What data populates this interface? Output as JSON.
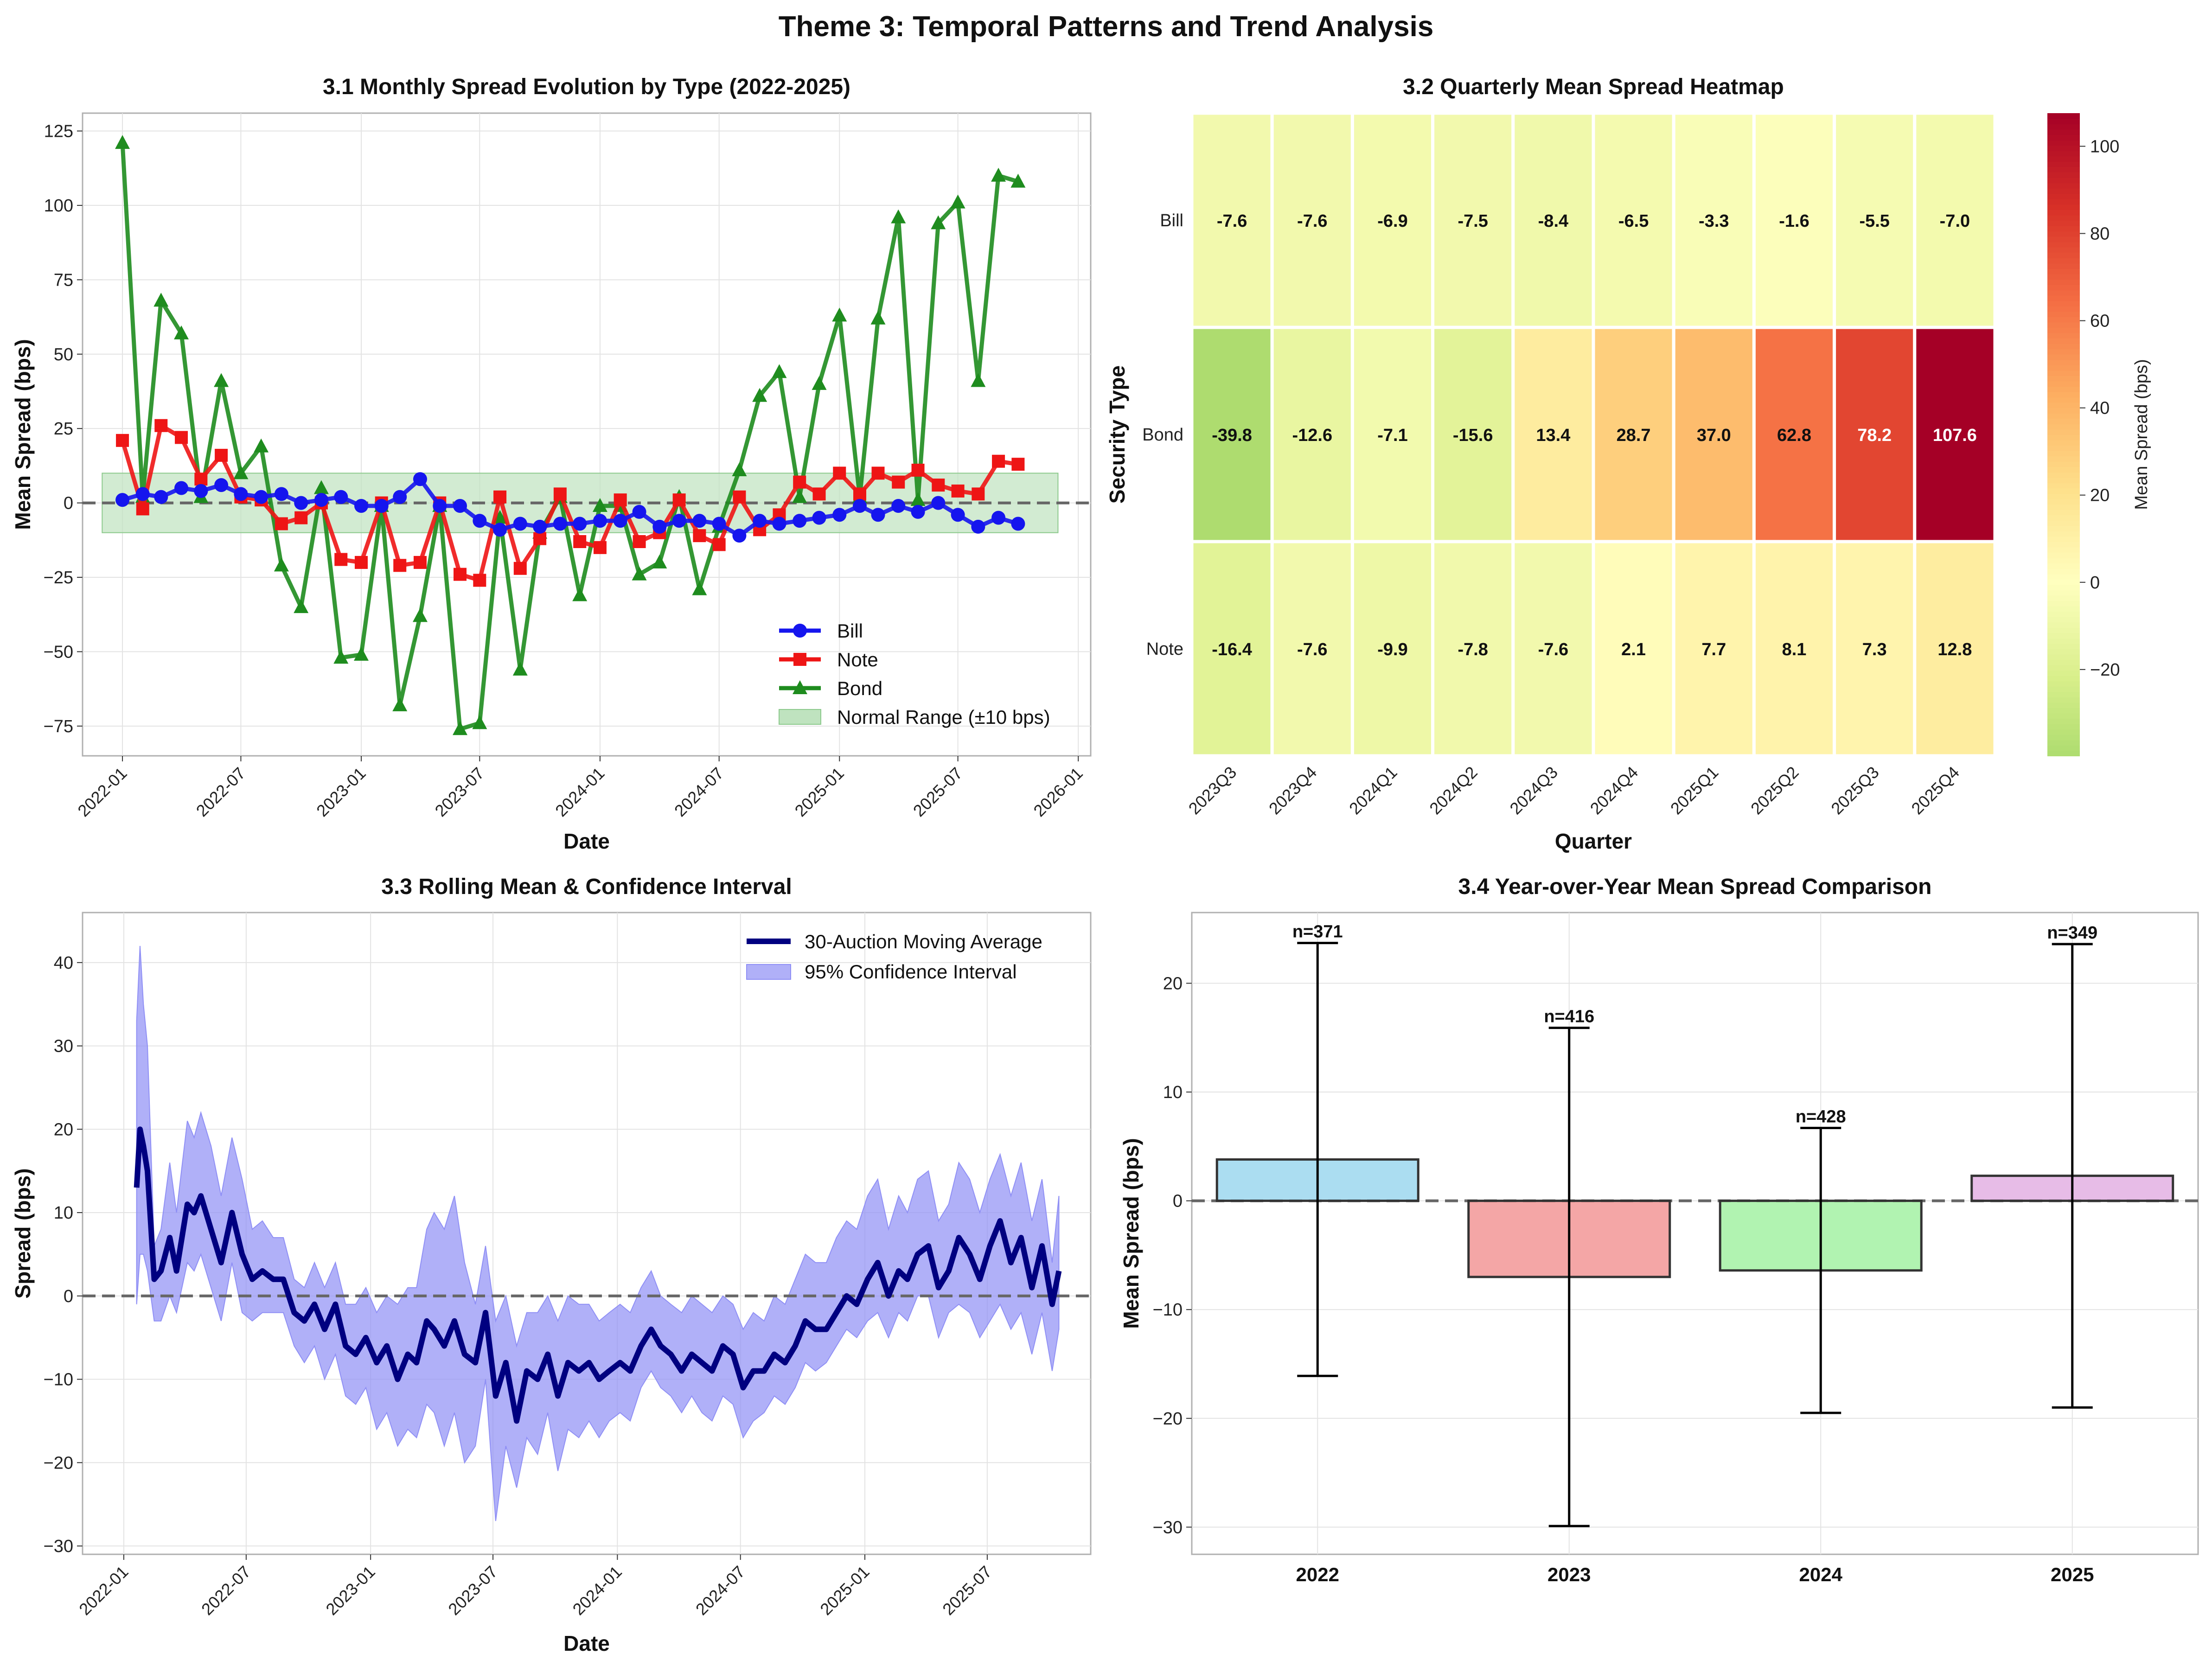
{
  "figure": {
    "title": "Theme 3: Temporal Patterns and Trend Analysis"
  },
  "colors": {
    "bill": "#1515ee",
    "note": "#ee1515",
    "bond": "#1e8c1e",
    "ma": "#000080",
    "ci": "#8f8ff5",
    "normal_range": "#bfe3bf",
    "grid": "#e3e3e3",
    "bars": [
      "#87ceeb",
      "#f08080",
      "#90ee90",
      "#dda0dd"
    ]
  },
  "chart_data": [
    {
      "id": "monthly",
      "type": "line",
      "title": "3.1 Monthly Spread Evolution by Type (2022-2025)",
      "xlabel": "Date",
      "ylabel": "Mean Spread (bps)",
      "xlim": [
        "2021-11-01",
        "2026-01-20"
      ],
      "ylim": [
        -85,
        131
      ],
      "yticks": [
        -75,
        -50,
        -25,
        0,
        25,
        50,
        75,
        100,
        125
      ],
      "xticks": [
        "2022-01",
        "2022-07",
        "2023-01",
        "2023-07",
        "2024-01",
        "2024-07",
        "2025-01",
        "2025-07",
        "2026-01"
      ],
      "grid": true,
      "legend_position": "lower-right",
      "normal_range": {
        "label": "Normal Range (±10 bps)",
        "x": [
          "2021-12-01",
          "2025-12-01"
        ],
        "y": [
          -10,
          10
        ]
      },
      "zero_line": 0,
      "dates": [
        "2022-01",
        "2022-02",
        "2022-03",
        "2022-04",
        "2022-05",
        "2022-06",
        "2022-07",
        "2022-08",
        "2022-09",
        "2022-10",
        "2022-11",
        "2022-12",
        "2023-01",
        "2023-02",
        "2023-03",
        "2023-04",
        "2023-05",
        "2023-06",
        "2023-07",
        "2023-08",
        "2023-09",
        "2023-10",
        "2023-11",
        "2023-12",
        "2024-01",
        "2024-02",
        "2024-03",
        "2024-04",
        "2024-05",
        "2024-06",
        "2024-07",
        "2024-08",
        "2024-09",
        "2024-10",
        "2024-11",
        "2024-12",
        "2025-01",
        "2025-02",
        "2025-03",
        "2025-04",
        "2025-05",
        "2025-06",
        "2025-07",
        "2025-08",
        "2025-09",
        "2025-10",
        "2025-11"
      ],
      "series": [
        {
          "name": "Bill",
          "marker": "circle",
          "values": [
            1,
            3,
            2,
            5,
            4,
            6,
            3,
            2,
            3,
            0,
            1,
            2,
            -1,
            -1,
            2,
            8,
            -1,
            -1,
            -6,
            -9,
            -7,
            -8,
            -7,
            -7,
            -6,
            -6,
            -3,
            -8,
            -6,
            -6,
            -7,
            -11,
            -6,
            -7,
            -6,
            -5,
            -4,
            -1,
            -4,
            -1,
            -3,
            0,
            -4,
            -8,
            -5,
            -7,
            null
          ]
        },
        {
          "name": "Note",
          "marker": "square",
          "values": [
            21,
            -2,
            26,
            22,
            8,
            16,
            2,
            1,
            -7,
            -5,
            0,
            -19,
            -20,
            0,
            -21,
            -20,
            0,
            -24,
            -26,
            2,
            -22,
            -12,
            3,
            -13,
            -15,
            1,
            -13,
            -10,
            1,
            -11,
            -14,
            2,
            -9,
            -4,
            7,
            3,
            10,
            3,
            10,
            7,
            11,
            6,
            4,
            3,
            14,
            13,
            null
          ]
        },
        {
          "name": "Bond",
          "marker": "triangle",
          "values": [
            121,
            2,
            68,
            57,
            2,
            41,
            10,
            19,
            -21,
            -35,
            5,
            -52,
            -51,
            -1,
            -68,
            -38,
            -1,
            -76,
            -74,
            -5,
            -56,
            -10,
            2,
            -31,
            -1,
            -1,
            -24,
            -20,
            2,
            -29,
            -8,
            11,
            36,
            44,
            2,
            40,
            63,
            2,
            62,
            96,
            1,
            94,
            101,
            41,
            110,
            108,
            null
          ]
        }
      ]
    },
    {
      "id": "heatmap",
      "type": "heatmap",
      "title": "3.2 Quarterly Mean Spread Heatmap",
      "xlabel": "Quarter",
      "ylabel": "Security Type",
      "colorbar_label": "Mean Spread (bps)",
      "colorbar_ticks": [
        -20,
        0,
        20,
        40,
        60,
        80,
        100
      ],
      "colorscale": "RdYlGn_r",
      "vmin": -39.8,
      "vmax": 107.6,
      "x": [
        "2023Q3",
        "2023Q4",
        "2024Q1",
        "2024Q2",
        "2024Q3",
        "2024Q4",
        "2025Q1",
        "2025Q2",
        "2025Q3",
        "2025Q4"
      ],
      "y": [
        "Bill",
        "Bond",
        "Note"
      ],
      "z": [
        [
          -7.6,
          -7.6,
          -6.9,
          -7.5,
          -8.4,
          -6.5,
          -3.3,
          -1.6,
          -5.5,
          -7.0
        ],
        [
          -39.8,
          -12.6,
          -7.1,
          -15.6,
          13.4,
          28.7,
          37.0,
          62.8,
          78.2,
          107.6
        ],
        [
          -16.4,
          -7.6,
          -9.9,
          -7.8,
          -7.6,
          2.1,
          7.7,
          8.1,
          7.3,
          12.8
        ]
      ],
      "labels": [
        [
          "-7.6",
          "-7.6",
          "-6.9",
          "-7.5",
          "-8.4",
          "-6.5",
          "-3.3",
          "-1.6",
          "-5.5",
          "-7.0"
        ],
        [
          "-39.8",
          "-12.6",
          "-7.1",
          "-15.6",
          "13.4",
          "28.7",
          "37.0",
          "62.8",
          "78.2",
          "107.6"
        ],
        [
          "-16.4",
          "-7.6",
          "-9.9",
          "-7.8",
          "-7.6",
          "2.1",
          "7.7",
          "8.1",
          "7.3",
          "12.8"
        ]
      ]
    },
    {
      "id": "rolling",
      "type": "line",
      "title": "3.3 Rolling Mean & Confidence Interval",
      "xlabel": "Date",
      "ylabel": "Spread (bps)",
      "xlim": [
        "2021-11-01",
        "2025-12-01"
      ],
      "ylim": [
        -31,
        46
      ],
      "yticks": [
        -30,
        -20,
        -10,
        0,
        10,
        20,
        30,
        40
      ],
      "xticks": [
        "2022-01",
        "2022-07",
        "2023-01",
        "2023-07",
        "2024-01",
        "2024-07",
        "2025-01",
        "2025-07"
      ],
      "grid": true,
      "legend_position": "upper-right",
      "zero_line": 0,
      "series": [
        {
          "name": "30-Auction Moving Average",
          "x": [
            "2022-01-20",
            "2022-01-25",
            "2022-01-30",
            "2022-02-05",
            "2022-02-15",
            "2022-02-25",
            "2022-03-10",
            "2022-03-20",
            "2022-04-05",
            "2022-04-15",
            "2022-04-25",
            "2022-05-10",
            "2022-05-25",
            "2022-06-10",
            "2022-06-25",
            "2022-07-10",
            "2022-07-25",
            "2022-08-10",
            "2022-08-25",
            "2022-09-10",
            "2022-09-25",
            "2022-10-10",
            "2022-10-25",
            "2022-11-10",
            "2022-11-25",
            "2022-12-10",
            "2022-12-25",
            "2023-01-10",
            "2023-01-25",
            "2023-02-10",
            "2023-02-25",
            "2023-03-10",
            "2023-03-25",
            "2023-04-05",
            "2023-04-20",
            "2023-05-05",
            "2023-05-20",
            "2023-06-05",
            "2023-06-20",
            "2023-07-05",
            "2023-07-20",
            "2023-08-05",
            "2023-08-20",
            "2023-09-05",
            "2023-09-20",
            "2023-10-05",
            "2023-10-20",
            "2023-11-05",
            "2023-11-20",
            "2023-12-05",
            "2023-12-20",
            "2024-01-05",
            "2024-01-20",
            "2024-02-05",
            "2024-02-20",
            "2024-03-05",
            "2024-03-20",
            "2024-04-05",
            "2024-04-20",
            "2024-05-05",
            "2024-05-20",
            "2024-06-05",
            "2024-06-20",
            "2024-07-05",
            "2024-07-20",
            "2024-08-05",
            "2024-08-20",
            "2024-09-05",
            "2024-09-20",
            "2024-10-05",
            "2024-10-20",
            "2024-11-05",
            "2024-11-20",
            "2024-12-05",
            "2024-12-20",
            "2025-01-05",
            "2025-01-20",
            "2025-02-05",
            "2025-02-20",
            "2025-03-05",
            "2025-03-20",
            "2025-04-05",
            "2025-04-20",
            "2025-05-05",
            "2025-05-20",
            "2025-06-05",
            "2025-06-20",
            "2025-07-05",
            "2025-07-20",
            "2025-08-05",
            "2025-08-20",
            "2025-09-05",
            "2025-09-20",
            "2025-10-05",
            "2025-10-15"
          ],
          "y": [
            13,
            20,
            18,
            15,
            2,
            3,
            7,
            3,
            11,
            10,
            12,
            8,
            4,
            10,
            5,
            2,
            3,
            2,
            2,
            -2,
            -3,
            -1,
            -4,
            -1,
            -6,
            -7,
            -5,
            -8,
            -6,
            -10,
            -7,
            -8,
            -3,
            -4,
            -6,
            -3,
            -7,
            -8,
            -2,
            -12,
            -8,
            -15,
            -9,
            -10,
            -7,
            -12,
            -8,
            -9,
            -8,
            -10,
            -9,
            -8,
            -9,
            -6,
            -4,
            -6,
            -7,
            -9,
            -7,
            -8,
            -9,
            -6,
            -7,
            -11,
            -9,
            -9,
            -7,
            -8,
            -6,
            -3,
            -4,
            -4,
            -2,
            0,
            -1,
            2,
            4,
            0,
            3,
            2,
            5,
            6,
            1,
            3,
            7,
            5,
            2,
            6,
            9,
            4,
            7,
            1,
            6,
            -1,
            3
          ]
        },
        {
          "name": "95% Confidence Interval",
          "x": [
            "2022-01-20",
            "2022-01-25",
            "2022-01-30",
            "2022-02-05",
            "2022-02-15",
            "2022-02-25",
            "2022-03-10",
            "2022-03-20",
            "2022-04-05",
            "2022-04-15",
            "2022-04-25",
            "2022-05-10",
            "2022-05-25",
            "2022-06-10",
            "2022-06-25",
            "2022-07-10",
            "2022-07-25",
            "2022-08-10",
            "2022-08-25",
            "2022-09-10",
            "2022-09-25",
            "2022-10-10",
            "2022-10-25",
            "2022-11-10",
            "2022-11-25",
            "2022-12-10",
            "2022-12-25",
            "2023-01-10",
            "2023-01-25",
            "2023-02-10",
            "2023-02-25",
            "2023-03-10",
            "2023-03-25",
            "2023-04-05",
            "2023-04-20",
            "2023-05-05",
            "2023-05-20",
            "2023-06-05",
            "2023-06-20",
            "2023-07-05",
            "2023-07-20",
            "2023-08-05",
            "2023-08-20",
            "2023-09-05",
            "2023-09-20",
            "2023-10-05",
            "2023-10-20",
            "2023-11-05",
            "2023-11-20",
            "2023-12-05",
            "2023-12-20",
            "2024-01-05",
            "2024-01-20",
            "2024-02-05",
            "2024-02-20",
            "2024-03-05",
            "2024-03-20",
            "2024-04-05",
            "2024-04-20",
            "2024-05-05",
            "2024-05-20",
            "2024-06-05",
            "2024-06-20",
            "2024-07-05",
            "2024-07-20",
            "2024-08-05",
            "2024-08-20",
            "2024-09-05",
            "2024-09-20",
            "2024-10-05",
            "2024-10-20",
            "2024-11-05",
            "2024-11-20",
            "2024-12-05",
            "2024-12-20",
            "2025-01-05",
            "2025-01-20",
            "2025-02-05",
            "2025-02-20",
            "2025-03-05",
            "2025-03-20",
            "2025-04-05",
            "2025-04-20",
            "2025-05-05",
            "2025-05-20",
            "2025-06-05",
            "2025-06-20",
            "2025-07-05",
            "2025-07-20",
            "2025-08-05",
            "2025-08-20",
            "2025-09-05",
            "2025-09-20",
            "2025-10-05",
            "2025-10-15"
          ],
          "upper": [
            33,
            42,
            35,
            30,
            6,
            8,
            16,
            10,
            21,
            19,
            22,
            18,
            12,
            19,
            14,
            8,
            9,
            7,
            7,
            2,
            1,
            4,
            1,
            4,
            -1,
            -1,
            1,
            -2,
            0,
            -1,
            1,
            1,
            8,
            10,
            8,
            12,
            4,
            -1,
            6,
            -3,
            0,
            -6,
            -2,
            -2,
            0,
            -3,
            0,
            -1,
            -1,
            -3,
            -2,
            -1,
            -2,
            1,
            3,
            0,
            -1,
            -2,
            0,
            -1,
            -2,
            0,
            -1,
            -4,
            -2,
            -3,
            0,
            -1,
            2,
            5,
            4,
            4,
            7,
            9,
            8,
            12,
            14,
            8,
            12,
            10,
            14,
            15,
            9,
            11,
            16,
            14,
            10,
            14,
            17,
            12,
            16,
            9,
            14,
            4,
            12
          ],
          "lower": [
            -1,
            5,
            5,
            3,
            -3,
            -3,
            0,
            -2,
            4,
            3,
            5,
            1,
            -3,
            4,
            -2,
            -3,
            -2,
            -2,
            -2,
            -6,
            -8,
            -6,
            -10,
            -7,
            -12,
            -13,
            -11,
            -16,
            -14,
            -18,
            -16,
            -17,
            -13,
            -14,
            -18,
            -14,
            -20,
            -18,
            -10,
            -27,
            -18,
            -23,
            -17,
            -19,
            -14,
            -21,
            -16,
            -17,
            -15,
            -17,
            -15,
            -14,
            -15,
            -11,
            -9,
            -11,
            -12,
            -14,
            -12,
            -14,
            -15,
            -12,
            -13,
            -17,
            -15,
            -14,
            -12,
            -13,
            -11,
            -8,
            -9,
            -8,
            -6,
            -4,
            -5,
            -3,
            -2,
            -5,
            -2,
            -3,
            0,
            0,
            -5,
            -2,
            -1,
            -2,
            -5,
            -3,
            -1,
            -4,
            -2,
            -7,
            -2,
            -9,
            -4
          ]
        }
      ]
    },
    {
      "id": "yoy",
      "type": "bar",
      "title": "3.4 Year-over-Year Mean Spread Comparison",
      "xlabel": "",
      "ylabel": "Mean Spread (bps)",
      "ylim": [
        -32.5,
        26.5
      ],
      "yticks": [
        -30,
        -20,
        -10,
        0,
        10,
        20
      ],
      "categories": [
        "2022",
        "2023",
        "2024",
        "2025"
      ],
      "values": [
        3.8,
        -7.0,
        -6.4,
        2.3
      ],
      "error": [
        19.9,
        22.9,
        13.1,
        21.3
      ],
      "annotations": [
        "n=371",
        "n=416",
        "n=428",
        "n=349"
      ],
      "zero_line": 0,
      "grid": true
    }
  ]
}
